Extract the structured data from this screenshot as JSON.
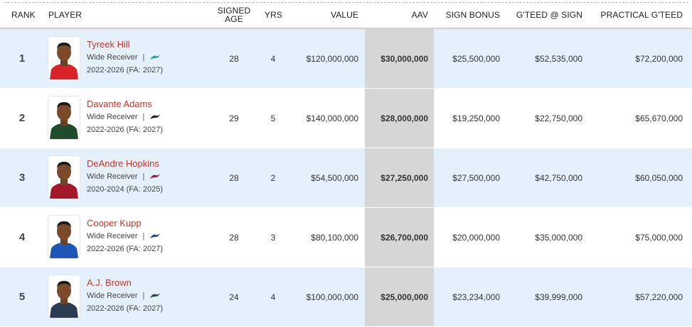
{
  "headers": {
    "rank": "RANK",
    "player": "PLAYER",
    "signed_age": "SIGNED AGE",
    "yrs": "YRS",
    "value": "VALUE",
    "aav": "AAV",
    "sign_bonus": "SIGN BONUS",
    "gteed_sign": "G'TEED @ SIGN",
    "practical_gteed": "PRACTICAL G'TEED"
  },
  "rows": [
    {
      "rank": "1",
      "name": "Tyreek Hill",
      "position": "Wide Receiver",
      "years": "2022-2026 (FA: 2027)",
      "team_icon": "dolphins-logo-icon",
      "team_color": "#2aa3a3",
      "jersey": "#d8232a",
      "age": "28",
      "yrs": "4",
      "value": "$120,000,000",
      "aav": "$30,000,000",
      "sign_bonus": "$25,500,000",
      "gteed_sign": "$52,535,000",
      "practical_gteed": "$72,200,000"
    },
    {
      "rank": "2",
      "name": "Davante Adams",
      "position": "Wide Receiver",
      "years": "2022-2026 (FA: 2027)",
      "team_icon": "raiders-logo-icon",
      "team_color": "#222222",
      "jersey": "#1f4d2b",
      "age": "29",
      "yrs": "5",
      "value": "$140,000,000",
      "aav": "$28,000,000",
      "sign_bonus": "$19,250,000",
      "gteed_sign": "$22,750,000",
      "practical_gteed": "$65,670,000"
    },
    {
      "rank": "3",
      "name": "DeAndre Hopkins",
      "position": "Wide Receiver",
      "years": "2020-2024 (FA: 2025)",
      "team_icon": "cardinals-logo-icon",
      "team_color": "#97233f",
      "jersey": "#a3182a",
      "age": "28",
      "yrs": "2",
      "value": "$54,500,000",
      "aav": "$27,250,000",
      "sign_bonus": "$27,500,000",
      "gteed_sign": "$42,750,000",
      "practical_gteed": "$60,050,000"
    },
    {
      "rank": "4",
      "name": "Cooper Kupp",
      "position": "Wide Receiver",
      "years": "2022-2026 (FA: 2027)",
      "team_icon": "rams-logo-icon",
      "team_color": "#1d4fa0",
      "jersey": "#1e56b5",
      "age": "28",
      "yrs": "3",
      "value": "$80,100,000",
      "aav": "$26,700,000",
      "sign_bonus": "$20,000,000",
      "gteed_sign": "$35,000,000",
      "practical_gteed": "$75,000,000"
    },
    {
      "rank": "5",
      "name": "A.J. Brown",
      "position": "Wide Receiver",
      "years": "2022-2026 (FA: 2027)",
      "team_icon": "eagles-logo-icon",
      "team_color": "#2e4a43",
      "jersey": "#2a3b52",
      "age": "24",
      "yrs": "4",
      "value": "$100,000,000",
      "aav": "$25,000,000",
      "sign_bonus": "$23,234,000",
      "gteed_sign": "$39,999,000",
      "practical_gteed": "$57,220,000"
    }
  ]
}
